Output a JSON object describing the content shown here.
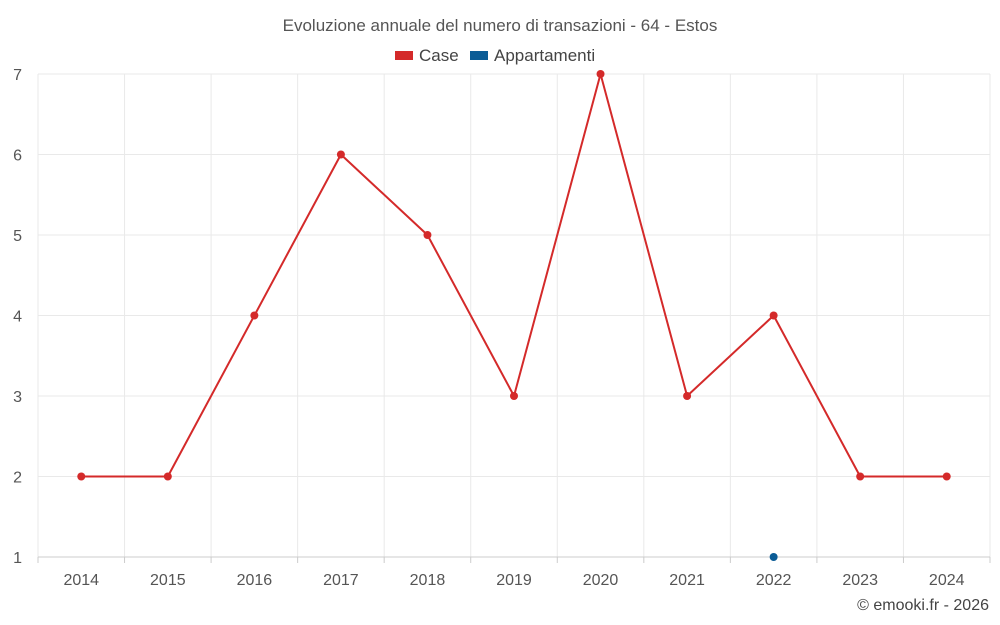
{
  "chart_data": {
    "type": "line",
    "title": "Evoluzione annuale del numero di transazioni - 64 - Estos",
    "categories": [
      "2014",
      "2015",
      "2016",
      "2017",
      "2018",
      "2019",
      "2020",
      "2021",
      "2022",
      "2023",
      "2024"
    ],
    "series": [
      {
        "name": "Case",
        "color": "#d42a2a",
        "values": [
          2,
          2,
          4,
          6,
          5,
          3,
          7,
          3,
          4,
          2,
          2
        ]
      },
      {
        "name": "Appartamenti",
        "color": "#0b5c96",
        "values": [
          null,
          null,
          null,
          null,
          null,
          null,
          null,
          null,
          1,
          null,
          null
        ]
      }
    ],
    "ylim": [
      1,
      7
    ],
    "yticks": [
      "1",
      "2",
      "3",
      "4",
      "5",
      "6",
      "7"
    ],
    "xlabel": "",
    "ylabel": "",
    "grid": true,
    "legend": "top-center"
  },
  "credit": "© emooki.fr - 2026"
}
